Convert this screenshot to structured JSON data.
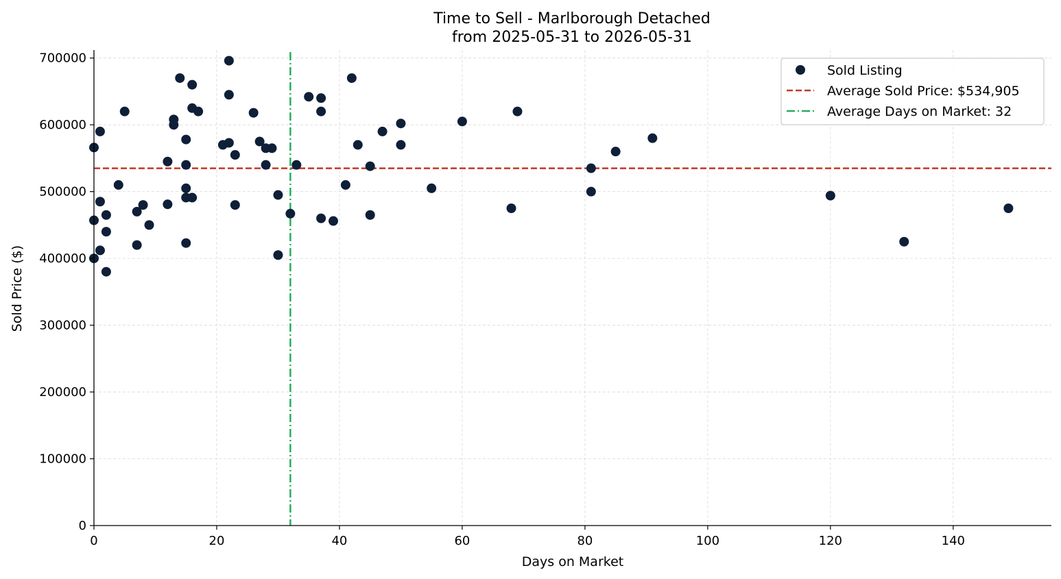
{
  "chart_data": {
    "type": "scatter",
    "title": "Time to Sell - Marlborough Detached",
    "subtitle": "from 2025-05-31 to 2026-05-31",
    "xlabel": "Days on Market",
    "ylabel": "Sold Price ($)",
    "xlim": [
      0,
      156
    ],
    "ylim": [
      0,
      712000
    ],
    "xticks": [
      0,
      20,
      40,
      60,
      80,
      100,
      120,
      140
    ],
    "yticks": [
      0,
      100000,
      200000,
      300000,
      400000,
      500000,
      600000,
      700000
    ],
    "grid": true,
    "legend_position": "top-right",
    "colors": {
      "points": "#0f1f38",
      "avg_price_line": "#c0392b",
      "avg_days_line": "#27ae60"
    },
    "series": [
      {
        "name": "Sold Listing",
        "points": [
          [
            0,
            566000
          ],
          [
            0,
            457000
          ],
          [
            0,
            400000
          ],
          [
            1,
            590000
          ],
          [
            1,
            485000
          ],
          [
            1,
            412000
          ],
          [
            2,
            465000
          ],
          [
            2,
            440000
          ],
          [
            2,
            380000
          ],
          [
            4,
            510000
          ],
          [
            5,
            620000
          ],
          [
            7,
            470000
          ],
          [
            7,
            420000
          ],
          [
            8,
            480000
          ],
          [
            9,
            450000
          ],
          [
            12,
            545000
          ],
          [
            12,
            481000
          ],
          [
            13,
            608000
          ],
          [
            13,
            600000
          ],
          [
            14,
            670000
          ],
          [
            15,
            578000
          ],
          [
            15,
            540000
          ],
          [
            15,
            505000
          ],
          [
            15,
            491000
          ],
          [
            15,
            423000
          ],
          [
            16,
            660000
          ],
          [
            16,
            625000
          ],
          [
            16,
            491000
          ],
          [
            17,
            620000
          ],
          [
            21,
            570000
          ],
          [
            22,
            696000
          ],
          [
            22,
            645000
          ],
          [
            22,
            573000
          ],
          [
            23,
            555000
          ],
          [
            23,
            480000
          ],
          [
            26,
            618000
          ],
          [
            27,
            575000
          ],
          [
            28,
            565000
          ],
          [
            28,
            540000
          ],
          [
            29,
            565000
          ],
          [
            30,
            495000
          ],
          [
            30,
            405000
          ],
          [
            32,
            467000
          ],
          [
            33,
            540000
          ],
          [
            35,
            642000
          ],
          [
            37,
            640000
          ],
          [
            37,
            620000
          ],
          [
            37,
            460000
          ],
          [
            39,
            456000
          ],
          [
            41,
            510000
          ],
          [
            42,
            670000
          ],
          [
            43,
            570000
          ],
          [
            45,
            538000
          ],
          [
            45,
            465000
          ],
          [
            47,
            590000
          ],
          [
            50,
            602000
          ],
          [
            50,
            570000
          ],
          [
            55,
            505000
          ],
          [
            60,
            605000
          ],
          [
            68,
            475000
          ],
          [
            69,
            620000
          ],
          [
            81,
            535000
          ],
          [
            81,
            500000
          ],
          [
            85,
            560000
          ],
          [
            91,
            580000
          ],
          [
            120,
            494000
          ],
          [
            132,
            425000
          ],
          [
            149,
            475000
          ]
        ]
      }
    ],
    "avg_price": {
      "value": 534905,
      "label": "Average Sold Price: $534,905"
    },
    "avg_days": {
      "value": 32,
      "label": "Average Days on Market: 32"
    }
  }
}
